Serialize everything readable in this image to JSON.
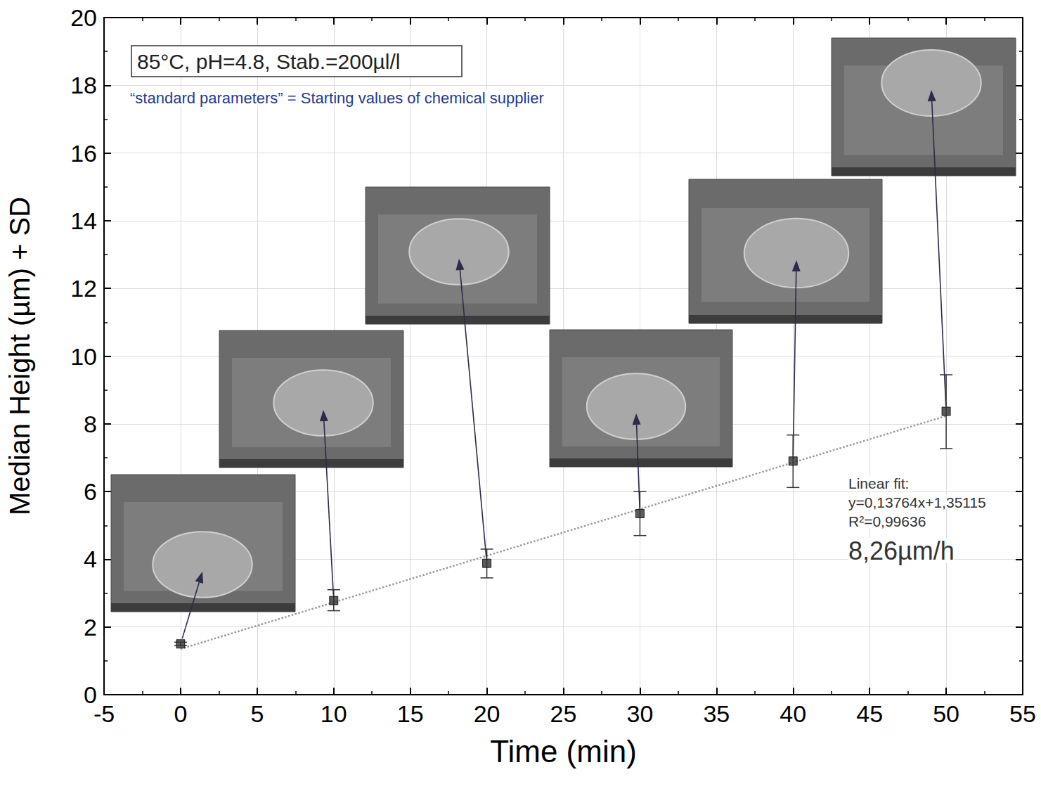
{
  "chart_data": {
    "type": "scatter",
    "x_label": "Time (min)",
    "y_label": "Median Height (µm) + SD",
    "x": [
      0,
      10,
      20,
      30,
      40,
      50
    ],
    "values": [
      1.5,
      2.78,
      3.88,
      5.35,
      6.9,
      8.37
    ],
    "yerr_low": [
      1.45,
      2.48,
      3.45,
      4.7,
      6.12,
      7.27
    ],
    "yerr_high": [
      1.55,
      3.1,
      4.3,
      6.0,
      7.67,
      9.45
    ],
    "color": "#333333",
    "marker": "square",
    "fit": {
      "slope": 0.13764,
      "intercept": 1.35115,
      "x": [
        0,
        50
      ],
      "color": "#999999",
      "line_style": "dotted"
    },
    "conditions": "85°C, pH=4.8, Stab.=200µl/l",
    "note": "“standard parameters” = Starting values of chemical supplier",
    "fit_text": [
      "Linear fit:",
      "y=0,13764x+1,35115",
      "R²=0,99636"
    ],
    "rate_text": "8,26µm/h",
    "xlim": [
      -5,
      55
    ],
    "xticks": [
      -5,
      0,
      5,
      10,
      15,
      20,
      25,
      30,
      35,
      40,
      45,
      50,
      55
    ],
    "ylim": [
      0,
      20
    ],
    "yticks": [
      0,
      2,
      4,
      6,
      8,
      10,
      12,
      14,
      16,
      18,
      20
    ],
    "grid": true
  }
}
